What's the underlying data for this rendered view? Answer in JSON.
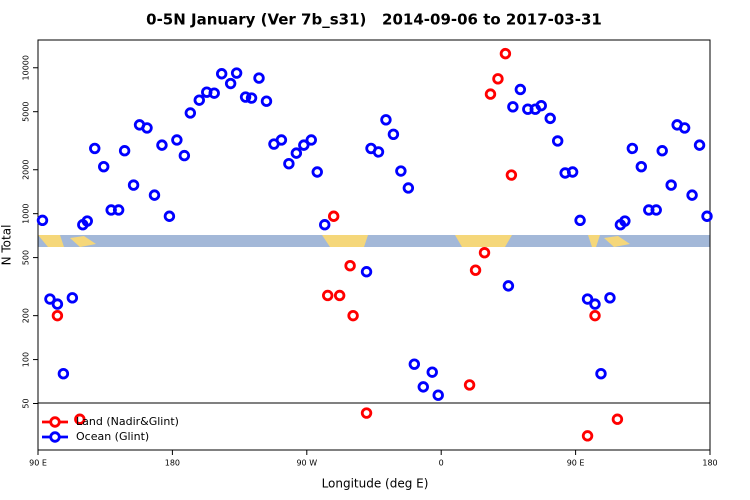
{
  "chart_data": {
    "type": "scatter",
    "title": "0-5N January (Ver 7b_s31)   2014-09-06 to 2017-03-31",
    "x_label": "Longitude (deg E)",
    "y_label": "N Total",
    "xlim": [
      90,
      540
    ],
    "xticks": [
      {
        "value": 90,
        "label": "90 E"
      },
      {
        "value": 180,
        "label": "180"
      },
      {
        "value": 270,
        "label": "90 W"
      },
      {
        "value": 360,
        "label": "0"
      },
      {
        "value": 450,
        "label": "90 E"
      },
      {
        "value": 540,
        "label": "180"
      }
    ],
    "ylim": [
      24,
      15500
    ],
    "y_log": true,
    "yticks": [
      50,
      100,
      200,
      500,
      1000,
      2000,
      5000,
      10000
    ],
    "legend": "bottom-left",
    "series": [
      {
        "name": "Land (Nadir&Glint)",
        "color": "#ff0000",
        "x": [
          103,
          118,
          284,
          288,
          292,
          299,
          301,
          310,
          379,
          383,
          389,
          393,
          398,
          403,
          407,
          458,
          463,
          478
        ],
        "values": [
          200,
          39,
          275,
          960,
          275,
          440,
          200,
          43,
          67,
          410,
          540,
          6600,
          8400,
          12500,
          1840,
          30,
          200,
          39
        ]
      },
      {
        "name": "Ocean (Glint)",
        "color": "#0000ff",
        "x": [
          93,
          98,
          103,
          107,
          113,
          120,
          123,
          128,
          134,
          139,
          144,
          148,
          154,
          158,
          163,
          168,
          173,
          178,
          183,
          188,
          192,
          198,
          203,
          208,
          213,
          219,
          223,
          229,
          233,
          238,
          243,
          248,
          253,
          258,
          263,
          268,
          273,
          277,
          282,
          310,
          313,
          318,
          323,
          328,
          333,
          338,
          342,
          348,
          354,
          358,
          405,
          408,
          413,
          418,
          423,
          427,
          433,
          438,
          443,
          448,
          453,
          458,
          463,
          467,
          473,
          480,
          483,
          488,
          494,
          499,
          504,
          508,
          514,
          518,
          523,
          528,
          533,
          538
        ],
        "values": [
          900,
          260,
          240,
          80,
          265,
          840,
          890,
          2800,
          2100,
          1060,
          1060,
          2700,
          1570,
          4060,
          3870,
          1340,
          2950,
          960,
          3200,
          2500,
          4900,
          6000,
          6800,
          6700,
          9100,
          7800,
          9200,
          6300,
          6200,
          8500,
          5900,
          3000,
          3200,
          2200,
          2600,
          2950,
          3200,
          1930,
          840,
          400,
          2800,
          2650,
          4400,
          3500,
          1960,
          1500,
          93,
          65,
          82,
          57,
          320,
          5400,
          7100,
          5200,
          5200,
          5500,
          4500,
          3150,
          1900,
          1930,
          900,
          260,
          240,
          80,
          265,
          840,
          890,
          2800,
          2100,
          1060,
          1060,
          2700,
          1570,
          4060,
          3870,
          1340,
          2950,
          960
        ]
      }
    ]
  }
}
